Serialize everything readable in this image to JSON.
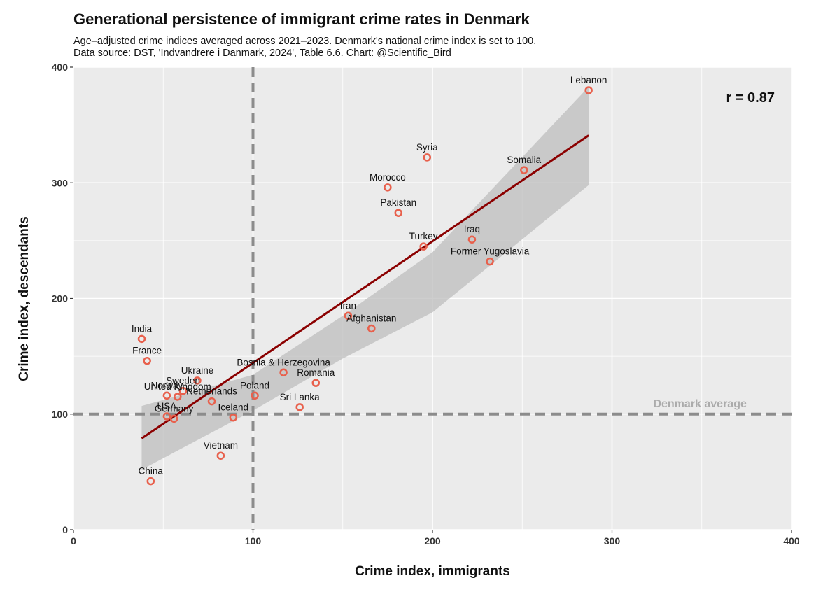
{
  "title": "Generational persistence of immigrant crime rates in Denmark",
  "subtitle_line1": "Age–adjusted crime indices averaged across 2021–2023. Denmark's national crime index is set to 100.",
  "subtitle_line2": "Data source: DST, 'Indvandrere i Danmark, 2024', Table 6.6.  Chart: @Scientific_Bird",
  "colors": {
    "panel": "#ebebeb",
    "grid": "#ffffff",
    "point": "#e8604c",
    "fit_line": "#8b0000",
    "ci_band": "#bebebe",
    "reference": "#8c8c8c"
  },
  "chart_data": {
    "type": "scatter",
    "xlabel": "Crime index, immigrants",
    "ylabel": "Crime index, descendants",
    "xlim": [
      0,
      400
    ],
    "ylim": [
      0,
      400
    ],
    "x_ticks": [
      0,
      100,
      200,
      300,
      400
    ],
    "y_ticks": [
      0,
      100,
      200,
      300,
      400
    ],
    "grid": true,
    "annotation": "r = 0.87",
    "reference_line_label": "Denmark average",
    "reference_lines": {
      "x": 100,
      "y": 100
    },
    "fit_line": {
      "x": [
        38,
        287
      ],
      "y": [
        79,
        341
      ]
    },
    "confidence_band": {
      "x": [
        38,
        100,
        150,
        200,
        287
      ],
      "lower": [
        52,
        103,
        148,
        188,
        298
      ],
      "upper": [
        107,
        134,
        185,
        240,
        383
      ]
    },
    "points": [
      {
        "label": "Lebanon",
        "x": 287,
        "y": 380
      },
      {
        "label": "Syria",
        "x": 197,
        "y": 322
      },
      {
        "label": "Somalia",
        "x": 251,
        "y": 311
      },
      {
        "label": "Morocco",
        "x": 175,
        "y": 296
      },
      {
        "label": "Pakistan",
        "x": 181,
        "y": 274
      },
      {
        "label": "Iraq",
        "x": 222,
        "y": 251
      },
      {
        "label": "Turkey",
        "x": 195,
        "y": 245
      },
      {
        "label": "Former Yugoslavia",
        "x": 232,
        "y": 232
      },
      {
        "label": "Iran",
        "x": 153,
        "y": 185
      },
      {
        "label": "Afghanistan",
        "x": 166,
        "y": 174
      },
      {
        "label": "India",
        "x": 38,
        "y": 165
      },
      {
        "label": "France",
        "x": 41,
        "y": 146
      },
      {
        "label": "Bosnia & Herzegovina",
        "x": 117,
        "y": 136
      },
      {
        "label": "Ukraine",
        "x": 69,
        "y": 129
      },
      {
        "label": "Romania",
        "x": 135,
        "y": 127
      },
      {
        "label": "Sweden",
        "x": 61,
        "y": 120
      },
      {
        "label": "Norway",
        "x": 52,
        "y": 116
      },
      {
        "label": "United Kingdom",
        "x": 58,
        "y": 115
      },
      {
        "label": "Poland",
        "x": 101,
        "y": 116
      },
      {
        "label": "Netherlands",
        "x": 77,
        "y": 111
      },
      {
        "label": "Sri Lanka",
        "x": 126,
        "y": 106
      },
      {
        "label": "USA",
        "x": 52,
        "y": 98
      },
      {
        "label": "Germany",
        "x": 56,
        "y": 96
      },
      {
        "label": "Iceland",
        "x": 89,
        "y": 97
      },
      {
        "label": "Vietnam",
        "x": 82,
        "y": 64
      },
      {
        "label": "China",
        "x": 43,
        "y": 42
      }
    ]
  }
}
